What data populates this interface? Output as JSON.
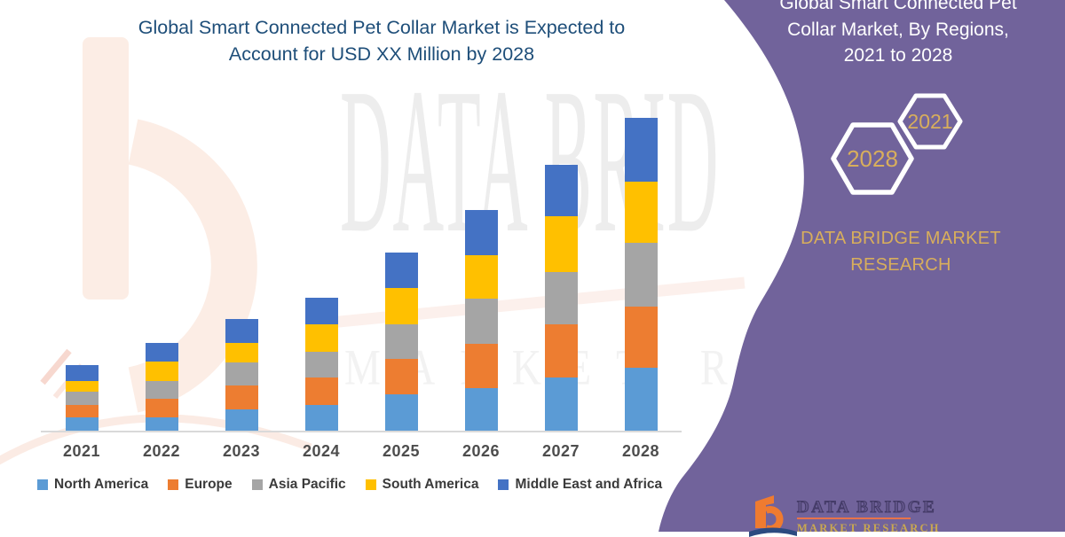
{
  "chart_panel": {
    "title_line1": "Global Smart Connected Pet Collar Market is Expected to",
    "title_line2": "Account for USD XX Million by 2028",
    "title_color": "#1E4E79"
  },
  "watermark": {
    "big_text": "DATA BRID",
    "sub_text": "MARKET RESEARCH"
  },
  "chart_data": {
    "type": "bar",
    "stacked": true,
    "title": "Global Smart Connected Pet Collar Market is Expected to Account for USD XX Million by 2028",
    "xlabel": "",
    "ylabel": "",
    "y_axis_visible": false,
    "note": "No y-axis scale shown (values undisclosed as 'USD XX Million'); segment values are relative units estimated from bar pixel heights",
    "legend_position": "bottom",
    "categories": [
      "2021",
      "2022",
      "2023",
      "2024",
      "2025",
      "2026",
      "2027",
      "2028"
    ],
    "series": [
      {
        "name": "North America",
        "color": "#5B9BD5",
        "values": [
          1.1,
          1.1,
          1.7,
          2.0,
          2.8,
          3.3,
          4.1,
          4.8
        ]
      },
      {
        "name": "Europe",
        "color": "#ED7D31",
        "values": [
          0.9,
          1.4,
          1.8,
          2.1,
          2.7,
          3.3,
          4.0,
          4.6
        ]
      },
      {
        "name": "Asia Pacific",
        "color": "#A5A5A5",
        "values": [
          1.0,
          1.3,
          1.7,
          1.9,
          2.6,
          3.4,
          3.9,
          4.8
        ]
      },
      {
        "name": "South America",
        "color": "#FFC000",
        "values": [
          0.8,
          1.5,
          1.5,
          2.1,
          2.7,
          3.3,
          4.2,
          4.6
        ]
      },
      {
        "name": "Middle East and Africa",
        "color": "#4472C4",
        "values": [
          1.2,
          1.4,
          1.8,
          2.0,
          2.7,
          3.4,
          3.9,
          4.8
        ]
      }
    ],
    "totals_by_year": [
      5.0,
      6.7,
      8.5,
      10.1,
      13.5,
      16.7,
      20.1,
      23.6
    ]
  },
  "sidebar": {
    "panel_color": "#6C5E98",
    "gold": "#D8AE5C",
    "heading_lines": [
      "Global Smart Connected Pet",
      "Collar Market, By Regions,",
      "2021 to 2028"
    ],
    "hexagons": [
      {
        "label": "2028"
      },
      {
        "label": "2021"
      }
    ],
    "brand_line1": "DATA BRIDGE MARKET",
    "brand_line2": "RESEARCH",
    "footer_logo": {
      "brand": "DATA BRIDGE",
      "brand_sub": "MARKET RESEARCH"
    }
  }
}
